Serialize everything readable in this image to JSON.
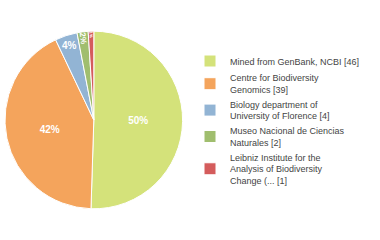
{
  "chart_data": {
    "type": "pie",
    "categories": [
      "Mined from GenBank, NCBI [46]",
      "Centre for Biodiversity\nGenomics [39]",
      "Biology department of\nUniversity of Florence [4]",
      "Museo Nacional de Ciencias\nNaturales [2]",
      "Leibniz Institute for the\nAnalysis of Biodiversity\nChange (... [1]"
    ],
    "values": [
      50,
      42,
      4,
      2,
      1
    ],
    "value_labels": [
      "50%",
      "42%",
      "4%",
      "2%",
      "1%"
    ],
    "colors": [
      "#d4e27a",
      "#f4a45c",
      "#92b4d4",
      "#a0be6e",
      "#d45c5c"
    ],
    "data_labels": true,
    "legend": "right"
  }
}
